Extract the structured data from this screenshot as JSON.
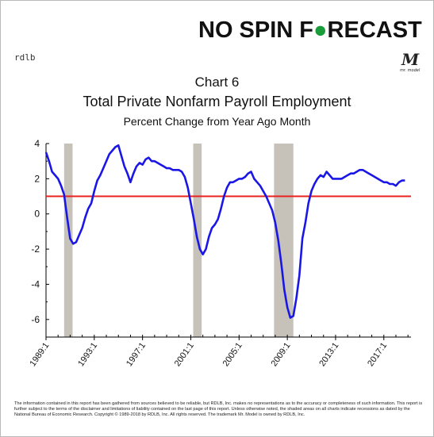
{
  "brand": {
    "logo_text_part1": "NO SPIN F",
    "logo_text_part2": "RECAST",
    "logo_o_color": "#1a9c3a",
    "left_mark": "rdlb",
    "right_mark": "M",
    "right_mark_sub": "mr. model"
  },
  "chart_data": {
    "type": "line",
    "title": "Chart 6",
    "subtitle": "Total Private Nonfarm Payroll Employment",
    "subtitle2": "Percent Change from Year Ago Month",
    "xlabel": "",
    "ylabel": "",
    "ylim": [
      -7,
      4
    ],
    "xlim": [
      1989.0,
      2019.25
    ],
    "yticks": [
      4,
      2,
      0,
      -2,
      -4,
      -6
    ],
    "xticks": [
      {
        "value": 1989.0,
        "label": "1989:1"
      },
      {
        "value": 1993.0,
        "label": "1993:1"
      },
      {
        "value": 1997.0,
        "label": "1997:1"
      },
      {
        "value": 2001.0,
        "label": "2001:1"
      },
      {
        "value": 2005.0,
        "label": "2005:1"
      },
      {
        "value": 2009.0,
        "label": "2009:1"
      },
      {
        "value": 2013.0,
        "label": "2013:1"
      },
      {
        "value": 2017.0,
        "label": "2017:1"
      }
    ],
    "recessions": [
      {
        "start": 1990.5,
        "end": 1991.2
      },
      {
        "start": 2001.2,
        "end": 2001.9
      },
      {
        "start": 2007.9,
        "end": 2009.5
      }
    ],
    "reference_line": {
      "y": 1.0,
      "color": "#e8231e"
    },
    "line_color": "#1a17e6",
    "recession_color": "#c6c2ba",
    "grid": false,
    "legend": "none",
    "series": [
      {
        "x": [
          1989.0,
          1989.25,
          1989.5,
          1989.75,
          1990.0,
          1990.25,
          1990.5,
          1990.75,
          1991.0,
          1991.25,
          1991.5,
          1991.75,
          1992.0,
          1992.25,
          1992.5,
          1992.75,
          1993.0,
          1993.25,
          1993.5,
          1993.75,
          1994.0,
          1994.25,
          1994.5,
          1994.75,
          1995.0,
          1995.25,
          1995.5,
          1995.75,
          1996.0,
          1996.25,
          1996.5,
          1996.75,
          1997.0,
          1997.25,
          1997.5,
          1997.75,
          1998.0,
          1998.25,
          1998.5,
          1998.75,
          1999.0,
          1999.25,
          1999.5,
          1999.75,
          2000.0,
          2000.25,
          2000.5,
          2000.75,
          2001.0,
          2001.25,
          2001.5,
          2001.75,
          2002.0,
          2002.25,
          2002.5,
          2002.75,
          2003.0,
          2003.25,
          2003.5,
          2003.75,
          2004.0,
          2004.25,
          2004.5,
          2004.75,
          2005.0,
          2005.25,
          2005.5,
          2005.75,
          2006.0,
          2006.25,
          2006.5,
          2006.75,
          2007.0,
          2007.25,
          2007.5,
          2007.75,
          2008.0,
          2008.25,
          2008.5,
          2008.75,
          2009.0,
          2009.25,
          2009.5,
          2009.75,
          2010.0,
          2010.25,
          2010.5,
          2010.75,
          2011.0,
          2011.25,
          2011.5,
          2011.75,
          2012.0,
          2012.25,
          2012.5,
          2012.75,
          2013.0,
          2013.25,
          2013.5,
          2013.75,
          2014.0,
          2014.25,
          2014.5,
          2014.75,
          2015.0,
          2015.25,
          2015.5,
          2015.75,
          2016.0,
          2016.25,
          2016.5,
          2016.75,
          2017.0,
          2017.25,
          2017.5,
          2017.75,
          2018.0,
          2018.25,
          2018.5,
          2018.75
        ],
        "y": [
          3.5,
          3.0,
          2.4,
          2.2,
          2.0,
          1.6,
          1.1,
          -0.2,
          -1.4,
          -1.7,
          -1.6,
          -1.2,
          -0.8,
          -0.2,
          0.3,
          0.6,
          1.3,
          1.9,
          2.2,
          2.6,
          3.0,
          3.4,
          3.6,
          3.8,
          3.9,
          3.3,
          2.7,
          2.3,
          1.8,
          2.3,
          2.7,
          2.9,
          2.8,
          3.1,
          3.2,
          3.0,
          3.0,
          2.9,
          2.8,
          2.7,
          2.6,
          2.6,
          2.5,
          2.5,
          2.5,
          2.4,
          2.1,
          1.5,
          0.6,
          -0.3,
          -1.3,
          -2.0,
          -2.3,
          -2.0,
          -1.3,
          -0.8,
          -0.6,
          -0.3,
          0.3,
          1.0,
          1.5,
          1.8,
          1.8,
          1.9,
          2.0,
          2.0,
          2.1,
          2.3,
          2.4,
          2.0,
          1.8,
          1.6,
          1.3,
          1.0,
          0.6,
          0.2,
          -0.5,
          -1.5,
          -2.8,
          -4.3,
          -5.3,
          -5.9,
          -5.8,
          -4.8,
          -3.5,
          -1.4,
          -0.5,
          0.6,
          1.3,
          1.7,
          2.0,
          2.2,
          2.1,
          2.4,
          2.2,
          2.0,
          2.0,
          2.0,
          2.0,
          2.1,
          2.2,
          2.3,
          2.3,
          2.4,
          2.5,
          2.5,
          2.4,
          2.3,
          2.2,
          2.1,
          2.0,
          1.9,
          1.8,
          1.8,
          1.7,
          1.7,
          1.6,
          1.8,
          1.9,
          1.9
        ]
      }
    ]
  },
  "disclaimer": "The information contained in this report has been gathered from sources believed to be reliable, but RDLB, Inc. makes no representations as to the accuracy or completeness of such information. This report is further subject to the terms of the disclaimer and limitations of liability contained on the last page of this report. Unless otherwise noted, the shaded areas on all charts indicate recessions as dated by the National Bureau of Economic Research. Copyright © 1989-2018 by RDLB, Inc. All rights reserved. The trademark Mr. Model is owned by RDLB, Inc."
}
